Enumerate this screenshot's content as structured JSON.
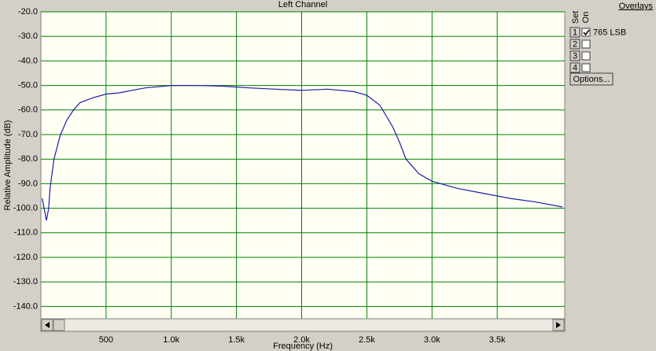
{
  "chart_data": {
    "type": "line",
    "title": "Left Channel",
    "x_label": "Frequency (Hz)",
    "y_label": "Relative Amplitude (dB)",
    "x": [
      10,
      25,
      42,
      60,
      70,
      100,
      150,
      200,
      250,
      300,
      400,
      500,
      600,
      700,
      800,
      900,
      1000,
      1200,
      1400,
      1600,
      1800,
      2000,
      2200,
      2400,
      2500,
      2600,
      2700,
      2750,
      2800,
      2900,
      3000,
      3200,
      3400,
      3600,
      3800,
      4000
    ],
    "series": [
      {
        "name": "765 LSB",
        "color": "#1c1ca8",
        "values": [
          -96,
          -100,
          -105,
          -100,
          -92,
          -80,
          -70,
          -64,
          -60,
          -57,
          -55,
          -53.5,
          -53,
          -52,
          -51,
          -50.5,
          -50,
          -50,
          -50.3,
          -51,
          -51.5,
          -52,
          -51.5,
          -52.5,
          -54,
          -58,
          -67,
          -73,
          -80,
          -86,
          -89,
          -92,
          -94,
          -96,
          -97.5,
          -99.5
        ]
      }
    ],
    "xlim": [
      0,
      4000
    ],
    "ylim": [
      -145,
      -20
    ],
    "xticks": [
      500,
      {
        "value": 1000,
        "label": "1.0k"
      },
      {
        "value": 1500,
        "label": "1.5k"
      },
      {
        "value": 2000,
        "label": "2.0k"
      },
      {
        "value": 2500,
        "label": "2.5k"
      },
      {
        "value": 3000,
        "label": "3.0k"
      },
      {
        "value": 3500,
        "label": "3.5k"
      }
    ],
    "yticks": [
      {
        "value": -20,
        "label": "-20.0"
      },
      {
        "value": -30,
        "label": "-30.0"
      },
      {
        "value": -40,
        "label": "-40.0"
      },
      {
        "value": -50,
        "label": "-50.0"
      },
      {
        "value": -60,
        "label": "-60.0"
      },
      {
        "value": -70,
        "label": "-70.0"
      },
      {
        "value": -80,
        "label": "-80.0"
      },
      {
        "value": -90,
        "label": "-90.0"
      },
      {
        "value": -100,
        "label": "-100.0"
      },
      {
        "value": -110,
        "label": "-110.0"
      },
      {
        "value": -120,
        "label": "-120.0"
      },
      {
        "value": -130,
        "label": "-130.0"
      },
      {
        "value": -140,
        "label": "-140.0"
      }
    ],
    "grid": true,
    "grid_color": "#008000"
  },
  "overlays": {
    "title": "Overlays",
    "headers": [
      "Set",
      "On"
    ],
    "rows": [
      {
        "set": "1",
        "checked": true,
        "label": "765 LSB"
      },
      {
        "set": "2",
        "checked": false
      },
      {
        "set": "3",
        "checked": false
      },
      {
        "set": "4",
        "checked": false
      }
    ],
    "button": "Options..."
  }
}
